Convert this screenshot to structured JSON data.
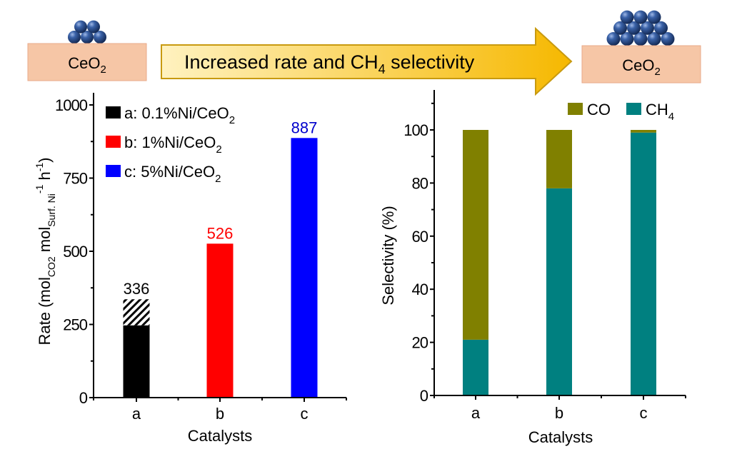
{
  "scheme": {
    "left_support_label": "CeO",
    "left_support_sub": "2",
    "right_support_label": "CeO",
    "right_support_sub": "2",
    "arrow_text_pre": "Increased rate and CH",
    "arrow_text_sub": "4",
    "arrow_text_post": " selectivity",
    "left_particle_count": 5,
    "right_particle_count": 12,
    "colors": {
      "support_fill": "#f6c6a6",
      "support_stroke": "#e8a98a",
      "arrow_fill_start": "#fff2c0",
      "arrow_fill_end": "#f6b800",
      "arrow_stroke": "#c89a10",
      "particle": "#2d4f8f"
    }
  },
  "chart_data": [
    {
      "type": "bar",
      "title": "",
      "xlabel": "Catalysts",
      "ylabel_parts": [
        "Rate (mol",
        "CO2",
        " mol",
        "Surf. Ni",
        "-1",
        " h",
        "-1",
        ")"
      ],
      "categories": [
        "a",
        "b",
        "c"
      ],
      "values": [
        336,
        526,
        887
      ],
      "solid_values": [
        247,
        526,
        887
      ],
      "hatched_segment": {
        "category": "a",
        "from": 247,
        "to": 336
      },
      "data_labels": [
        "336",
        "526",
        "887"
      ],
      "colors": [
        "#000000",
        "#ff0000",
        "#0000ff"
      ],
      "label_colors": [
        "#000000",
        "#ff0000",
        "#0000cc"
      ],
      "ylim": [
        0,
        1000
      ],
      "yticks": [
        0,
        250,
        500,
        750,
        1000
      ],
      "yminor": [
        125,
        375,
        625,
        875
      ],
      "grid": false,
      "legend": {
        "placement": "top-left",
        "entries": [
          {
            "pre": "a: 0.1%Ni/CeO",
            "sub": "2",
            "color": "#000000"
          },
          {
            "pre": "b: 1%Ni/CeO",
            "sub": "2",
            "color": "#ff0000"
          },
          {
            "pre": "c: 5%Ni/CeO",
            "sub": "2",
            "color": "#0000ff"
          }
        ]
      }
    },
    {
      "type": "bar",
      "stacked": true,
      "title": "",
      "xlabel": "Catalysts",
      "ylabel": "Selectivity (%)",
      "categories": [
        "a",
        "b",
        "c"
      ],
      "series": [
        {
          "name": "CH4",
          "legend_pre": "CH",
          "legend_sub": "4",
          "color": "#008080",
          "values": [
            21,
            78,
            99
          ]
        },
        {
          "name": "CO",
          "legend_pre": "CO",
          "legend_sub": "",
          "color": "#808000",
          "values": [
            79,
            22,
            1
          ]
        }
      ],
      "ylim": [
        0,
        115
      ],
      "yticks": [
        0,
        20,
        40,
        60,
        80,
        100
      ],
      "yminor": [
        10,
        30,
        50,
        70,
        90,
        110
      ],
      "grid": false,
      "legend": {
        "placement": "top-right",
        "order": [
          "CO",
          "CH4"
        ]
      }
    }
  ]
}
